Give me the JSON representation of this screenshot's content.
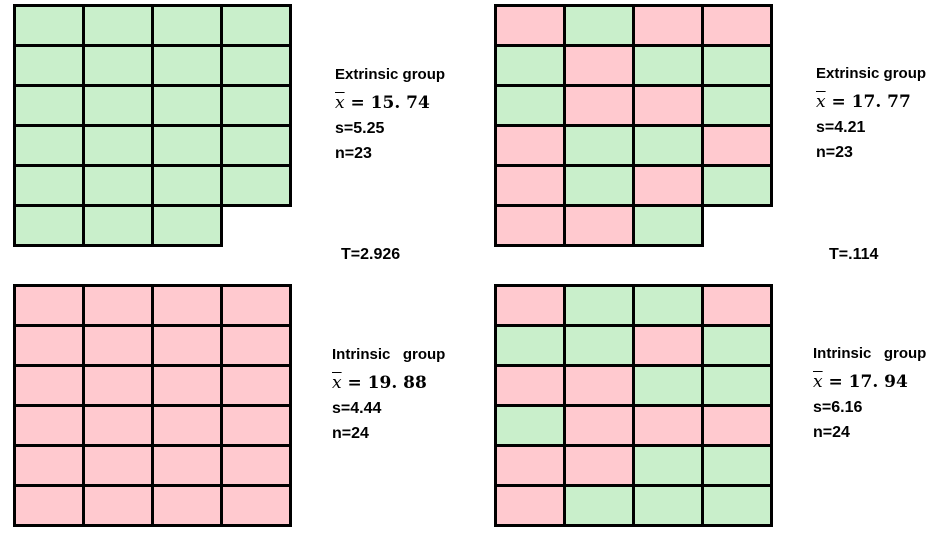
{
  "left": {
    "extrinsic": {
      "title": "Extrinsic group",
      "mean_symbol": "x",
      "mean": "= 15. 74",
      "s": "s=5.25",
      "n": "n=23",
      "grid": [
        [
          "green",
          "green",
          "green",
          "green"
        ],
        [
          "green",
          "green",
          "green",
          "green"
        ],
        [
          "green",
          "green",
          "green",
          "green"
        ],
        [
          "green",
          "green",
          "green",
          "green"
        ],
        [
          "green",
          "green",
          "green",
          "green"
        ],
        [
          "green",
          "green",
          "green",
          "empty"
        ]
      ]
    },
    "t": "T=2.926",
    "intrinsic": {
      "title": "Intrinsic   group",
      "mean_symbol": "x",
      "mean": "= 19. 88",
      "s": "s=4.44",
      "n": "n=24",
      "grid": [
        [
          "pink",
          "pink",
          "pink",
          "pink"
        ],
        [
          "pink",
          "pink",
          "pink",
          "pink"
        ],
        [
          "pink",
          "pink",
          "pink",
          "pink"
        ],
        [
          "pink",
          "pink",
          "pink",
          "pink"
        ],
        [
          "pink",
          "pink",
          "pink",
          "pink"
        ],
        [
          "pink",
          "pink",
          "pink",
          "pink"
        ]
      ]
    }
  },
  "right": {
    "extrinsic": {
      "title": "Extrinsic group",
      "mean_symbol": "x",
      "mean": "= 17. 77",
      "s": "s=4.21",
      "n": "n=23",
      "grid": [
        [
          "pink",
          "green",
          "pink",
          "pink"
        ],
        [
          "green",
          "pink",
          "green",
          "green"
        ],
        [
          "green",
          "pink",
          "pink",
          "green"
        ],
        [
          "pink",
          "green",
          "green",
          "pink"
        ],
        [
          "pink",
          "green",
          "pink",
          "green"
        ],
        [
          "pink",
          "pink",
          "green",
          "empty"
        ]
      ]
    },
    "t": "T=.114",
    "intrinsic": {
      "title": "Intrinsic   group",
      "mean_symbol": "x",
      "mean": "= 17. 94",
      "s": "s=6.16",
      "n": "n=24",
      "grid": [
        [
          "pink",
          "green",
          "green",
          "pink"
        ],
        [
          "green",
          "green",
          "pink",
          "green"
        ],
        [
          "pink",
          "pink",
          "green",
          "green"
        ],
        [
          "green",
          "pink",
          "pink",
          "pink"
        ],
        [
          "pink",
          "pink",
          "green",
          "green"
        ],
        [
          "pink",
          "green",
          "green",
          "green"
        ]
      ]
    }
  }
}
